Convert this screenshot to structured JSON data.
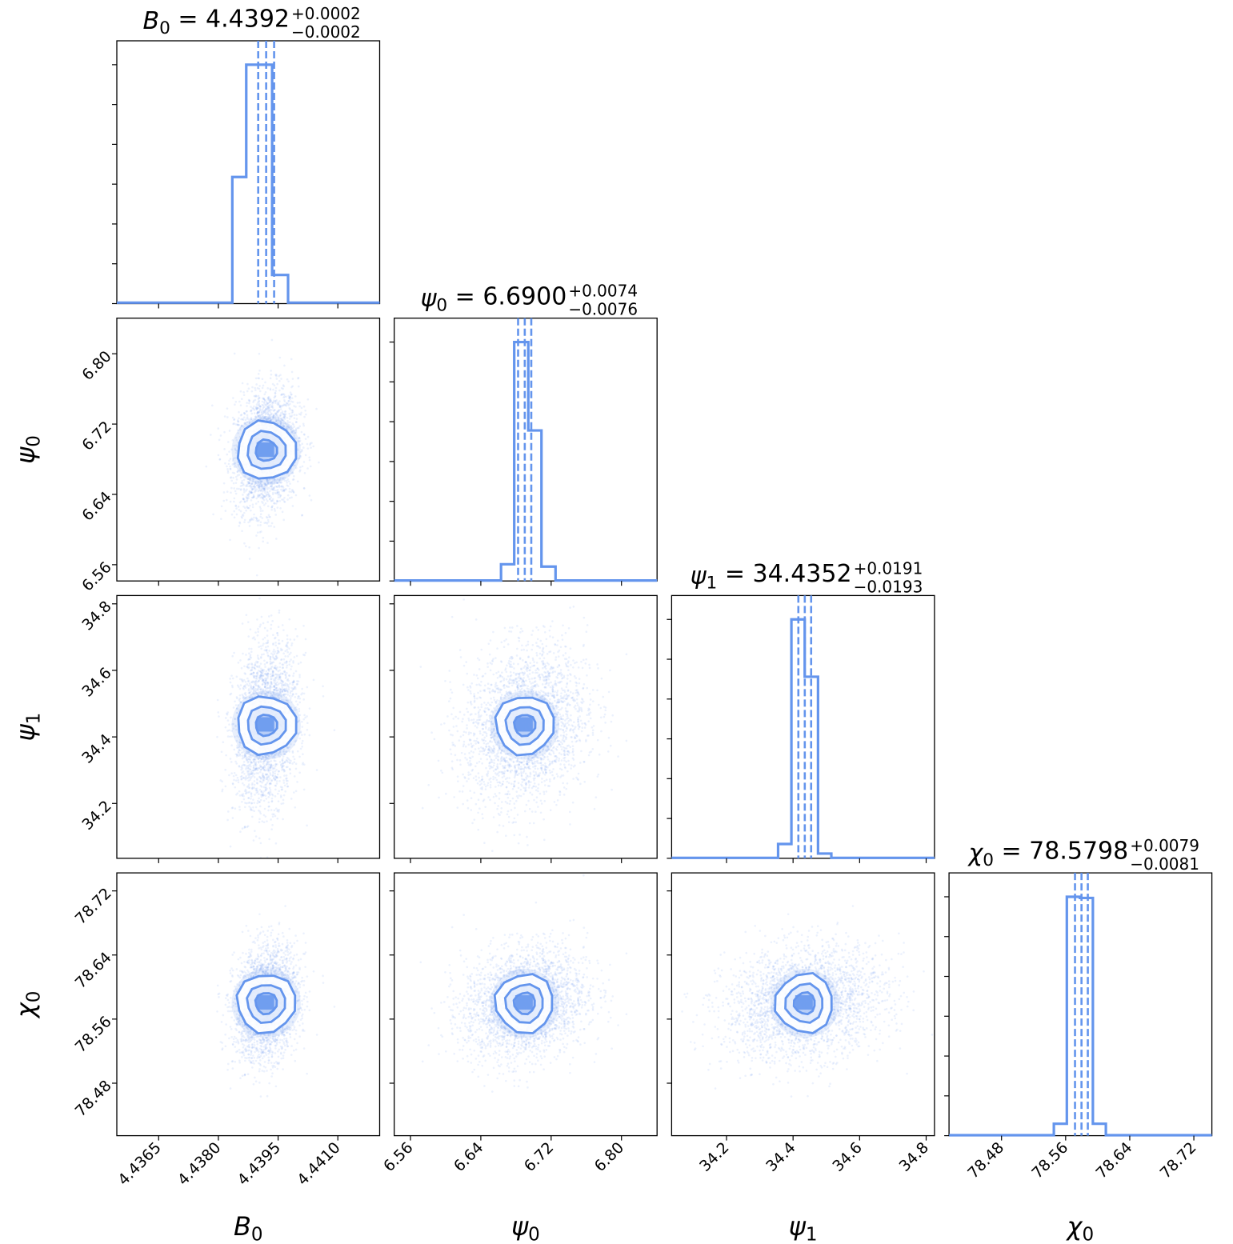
{
  "chart_data": {
    "type": "corner",
    "color": "#6495ed",
    "parameters": [
      {
        "key": "B0",
        "sym": "B",
        "sub": "0",
        "median_text": "4.4392",
        "plus": "+0.0002",
        "minus": "−0.0002",
        "median": 4.4392,
        "quantiles": [
          4.439,
          4.4392,
          4.4394
        ],
        "range": [
          4.43545,
          4.44205
        ],
        "ticks": [
          4.4365,
          4.438,
          4.4395,
          4.441
        ],
        "tick_labels": [
          "4.4365",
          "4.4380",
          "4.4395",
          "4.4410"
        ],
        "sigma": 0.0004,
        "hist_edges": [
          4.43545,
          4.43805,
          4.43835,
          4.4387,
          4.439,
          4.43935,
          4.43975,
          4.44205
        ],
        "hist_values": [
          0.004,
          0.004,
          0.53,
          1.0,
          1.0,
          0.12,
          0.004
        ]
      },
      {
        "key": "psi0",
        "sym": "ψ",
        "sub": "0",
        "median_text": "6.6900",
        "plus": "+0.0074",
        "minus": "−0.0076",
        "median": 6.69,
        "quantiles": [
          6.6824,
          6.69,
          6.6974
        ],
        "range": [
          6.5415,
          6.8405
        ],
        "ticks": [
          6.56,
          6.64,
          6.72,
          6.8
        ],
        "tick_labels": [
          "6.56",
          "6.64",
          "6.72",
          "6.80"
        ],
        "sigma": 0.035,
        "hist_edges": [
          6.5415,
          6.663,
          6.678,
          6.694,
          6.709,
          6.725,
          6.8405
        ],
        "hist_values": [
          0.002,
          0.07,
          1.0,
          0.63,
          0.06,
          0.002
        ]
      },
      {
        "key": "psi1",
        "sym": "ψ",
        "sub": "1",
        "median_text": "34.4352",
        "plus": "+0.0191",
        "minus": "−0.0193",
        "median": 34.4352,
        "quantiles": [
          34.4159,
          34.4352,
          34.4543
        ],
        "range": [
          34.035,
          34.825
        ],
        "ticks": [
          34.2,
          34.4,
          34.6,
          34.8
        ],
        "tick_labels": [
          "34.2",
          "34.4",
          "34.6",
          "34.8"
        ],
        "sigma": 0.12,
        "hist_edges": [
          34.035,
          34.355,
          34.395,
          34.435,
          34.475,
          34.515,
          34.825
        ],
        "hist_values": [
          0.002,
          0.06,
          1.0,
          0.76,
          0.02,
          0.002
        ]
      },
      {
        "key": "chi0",
        "sym": "χ",
        "sub": "0",
        "median_text": "78.5798",
        "plus": "+0.0079",
        "minus": "−0.0081",
        "median": 78.5798,
        "quantiles": [
          78.5717,
          78.5798,
          78.5877
        ],
        "range": [
          78.4145,
          78.7425
        ],
        "ticks": [
          78.48,
          78.56,
          78.64,
          78.72
        ],
        "tick_labels": [
          "78.48",
          "78.56",
          "78.64",
          "78.72"
        ],
        "sigma": 0.035,
        "hist_edges": [
          78.4145,
          78.5453,
          78.5615,
          78.5778,
          78.594,
          78.6102,
          78.7425
        ],
        "hist_values": [
          0.002,
          0.05,
          1.0,
          0.995,
          0.05,
          0.002
        ]
      }
    ]
  }
}
